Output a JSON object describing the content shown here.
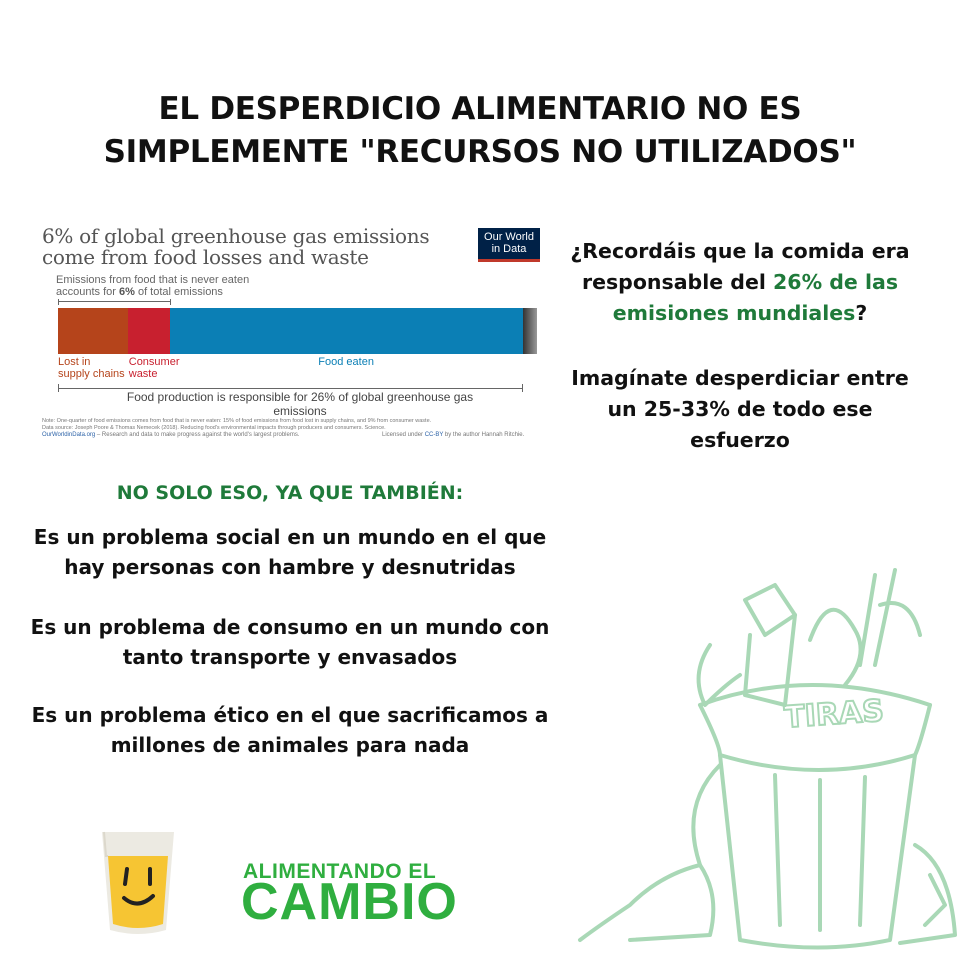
{
  "title": "EL DESPERDICIO ALIMENTARIO NO ES SIMPLEMENTE \"RECURSOS NO UTILIZADOS\"",
  "embedded_chart": {
    "title": "6% of global greenhouse gas emissions come from food losses and waste",
    "logo_line1": "Our World",
    "logo_line2": "in Data",
    "annotation_line1": "Emissions from food that is never eaten",
    "annotation_pre": "accounts for ",
    "annotation_bold": "6%",
    "annotation_post": " of total emissions",
    "bottom_label": "Food production is responsible for 26% of global greenhouse gas emissions",
    "note": "Note: One-quarter of food emissions comes from food that is never eaten: 15% of food emissions from food lost in supply chains, and 9% from consumer waste.",
    "source": "Data source: Joseph Poore & Thomas Nemecek (2018). Reducing food's environmental impacts through producers and consumers. Science.",
    "site_link": "OurWorldinData.org",
    "site_desc": " – Research and data to make progress against the world's largest problems.",
    "license_pre": "Licensed under ",
    "license_link": "CC-BY",
    "license_post": " by the author Hannah Ritchie.",
    "segments": [
      {
        "label1": "Lost in",
        "label2": "supply chains",
        "share": 15,
        "color": "#b5441b"
      },
      {
        "label1": "Consumer",
        "label2": "waste",
        "share": 9,
        "color": "#c8202f"
      },
      {
        "label1": "Food eaten",
        "label2": "",
        "share": 76,
        "color": "#0b7fb5"
      }
    ]
  },
  "right": {
    "p1_before": "¿Recordáis que la comida era responsable del ",
    "p1_highlight": "26% de las emisiones mundiales",
    "p1_after": "?",
    "p2": "Imagínate desperdiciar entre un 25-33% de todo ese esfuerzo"
  },
  "section_heading": "NO SOLO ESO, YA QUE TAMBIÉN:",
  "points": [
    "Es un problema social en un mundo en el que hay personas con hambre y desnutridas",
    "Es un problema de consumo en un mundo con tanto transporte y envasados",
    "Es un problema ético en el que sacrificamos a millones de animales para nada"
  ],
  "illustration_text": "TIRAS",
  "logo": {
    "line1": "ALIMENTANDO EL",
    "line2": "CAMBIO"
  },
  "colors": {
    "green_text": "#1f7a3a",
    "logo_green": "#2fae3f",
    "sketch_green": "#a9d8b6",
    "glass_yellow": "#f6c533"
  }
}
